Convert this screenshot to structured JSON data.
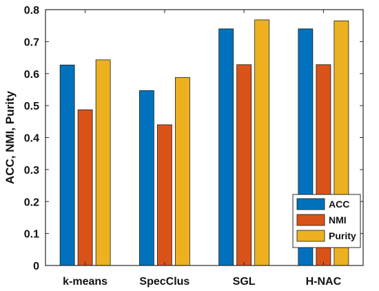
{
  "chart_data": {
    "type": "bar",
    "title": "",
    "xlabel": "",
    "ylabel": "ACC, NMI, Purity",
    "categories": [
      "k-means",
      "SpecClus",
      "SGL",
      "H-NAC"
    ],
    "series": [
      {
        "name": "ACC",
        "color": "#0072BD",
        "values": [
          0.627,
          0.547,
          0.74,
          0.74
        ]
      },
      {
        "name": "NMI",
        "color": "#D95319",
        "values": [
          0.487,
          0.44,
          0.628,
          0.628
        ]
      },
      {
        "name": "Purity",
        "color": "#EDB120",
        "values": [
          0.643,
          0.588,
          0.768,
          0.765
        ]
      }
    ],
    "ylim": [
      0,
      0.8
    ],
    "yticks": [
      0,
      0.1,
      0.2,
      0.3,
      0.4,
      0.5,
      0.6,
      0.7,
      0.8
    ],
    "ytick_labels": [
      "0",
      "0.1",
      "0.2",
      "0.3",
      "0.4",
      "0.5",
      "0.6",
      "0.7",
      "0.8"
    ],
    "grid": false,
    "legend_position": "bottom-right"
  }
}
